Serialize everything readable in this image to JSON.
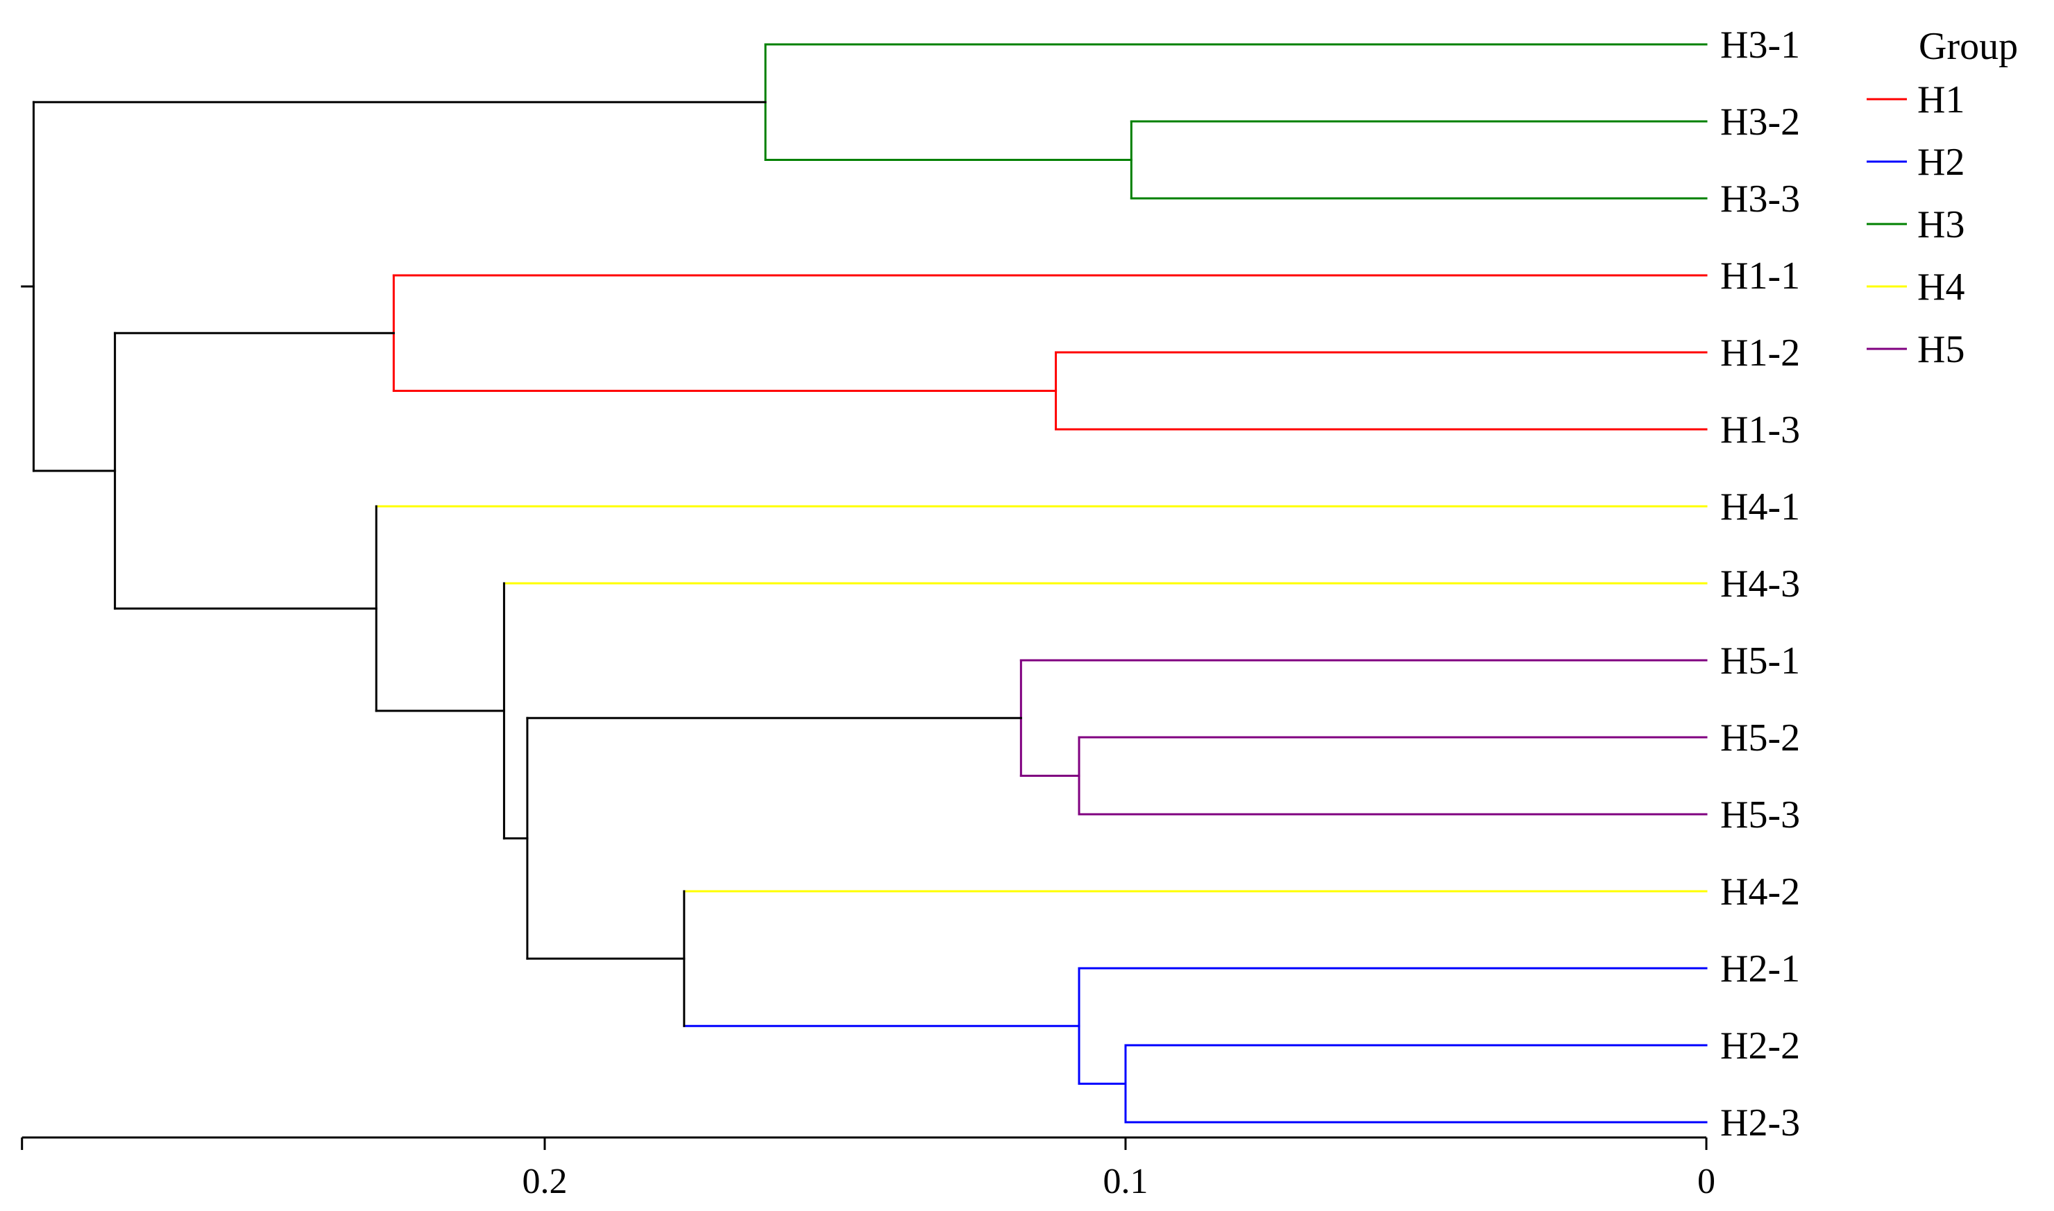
{
  "chart_data": {
    "type": "dendrogram",
    "title": "",
    "xlabel": "",
    "ylabel": "",
    "x_axis": {
      "reversed": true,
      "domain": [
        0.29,
        0
      ],
      "ticks": [
        0.2,
        0.1,
        0
      ],
      "tick_labels": [
        "0.2",
        "0.1",
        "0"
      ]
    },
    "legend": {
      "title": "Group",
      "position": "top-right",
      "entries": [
        {
          "label": "H1",
          "color": "#ff0000"
        },
        {
          "label": "H2",
          "color": "#0000ff"
        },
        {
          "label": "H3",
          "color": "#008000"
        },
        {
          "label": "H4",
          "color": "#ffff00"
        },
        {
          "label": "H5",
          "color": "#800080"
        }
      ]
    },
    "leaves": [
      {
        "label": "H3-1",
        "group": "H3"
      },
      {
        "label": "H3-2",
        "group": "H3"
      },
      {
        "label": "H3-3",
        "group": "H3"
      },
      {
        "label": "H1-1",
        "group": "H1"
      },
      {
        "label": "H1-2",
        "group": "H1"
      },
      {
        "label": "H1-3",
        "group": "H1"
      },
      {
        "label": "H4-1",
        "group": "H4"
      },
      {
        "label": "H4-3",
        "group": "H4"
      },
      {
        "label": "H5-1",
        "group": "H5"
      },
      {
        "label": "H5-2",
        "group": "H5"
      },
      {
        "label": "H5-3",
        "group": "H5"
      },
      {
        "label": "H4-2",
        "group": "H4"
      },
      {
        "label": "H2-1",
        "group": "H2"
      },
      {
        "label": "H2-2",
        "group": "H2"
      },
      {
        "label": "H2-3",
        "group": "H2"
      }
    ],
    "merges": [
      {
        "id": "h3_23",
        "children": [
          "H3-2",
          "H3-3"
        ],
        "height": 0.099,
        "color": "#008000"
      },
      {
        "id": "h3_all",
        "children": [
          "H3-1",
          "h3_23"
        ],
        "height": 0.162,
        "color": "#008000"
      },
      {
        "id": "h1_23",
        "children": [
          "H1-2",
          "H1-3"
        ],
        "height": 0.112,
        "color": "#ff0000"
      },
      {
        "id": "h1_all",
        "children": [
          "H1-1",
          "h1_23"
        ],
        "height": 0.226,
        "color": "#ff0000"
      },
      {
        "id": "h5_23",
        "children": [
          "H5-2",
          "H5-3"
        ],
        "height": 0.108,
        "color": "#800080"
      },
      {
        "id": "h5_all",
        "children": [
          "H5-1",
          "h5_23"
        ],
        "height": 0.118,
        "color": "#800080"
      },
      {
        "id": "h2_23",
        "children": [
          "H2-2",
          "H2-3"
        ],
        "height": 0.1,
        "color": "#0000ff"
      },
      {
        "id": "h2_all",
        "children": [
          "H2-1",
          "h2_23"
        ],
        "height": 0.108,
        "color": "#0000ff"
      },
      {
        "id": "h42_h2",
        "children": [
          "H4-2",
          "h2_all"
        ],
        "height": 0.176,
        "color": "#000000",
        "child_colors": [
          "#ffff00",
          "#0000ff"
        ]
      },
      {
        "id": "h5_h42",
        "children": [
          "h5_all",
          "h42_h2"
        ],
        "height": 0.203,
        "color": "#000000"
      },
      {
        "id": "h43_grp",
        "children": [
          "H4-3",
          "h5_h42"
        ],
        "height": 0.207,
        "color": "#000000",
        "child_colors": [
          "#ffff00",
          "#000000"
        ]
      },
      {
        "id": "h41_grp",
        "children": [
          "H4-1",
          "h43_grp"
        ],
        "height": 0.229,
        "color": "#000000",
        "child_colors": [
          "#ffff00",
          "#000000"
        ]
      },
      {
        "id": "h1_rest",
        "children": [
          "h1_all",
          "h41_grp"
        ],
        "height": 0.274,
        "color": "#000000"
      },
      {
        "id": "root",
        "children": [
          "h3_all",
          "h1_rest"
        ],
        "height": 0.288,
        "color": "#000000"
      }
    ]
  }
}
